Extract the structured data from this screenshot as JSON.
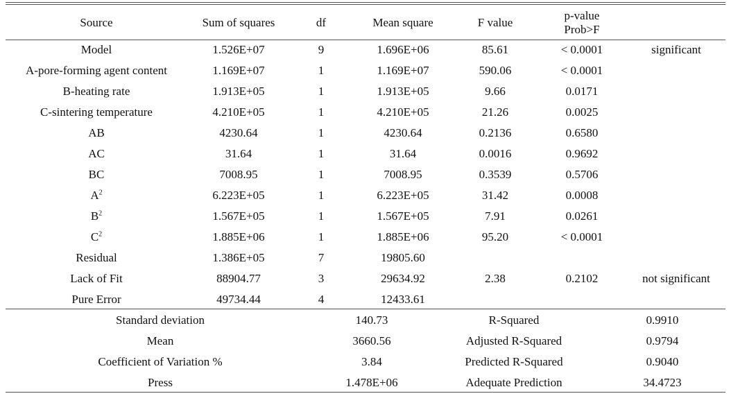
{
  "header": {
    "source": "Source",
    "sum_of_squares": "Sum of squares",
    "df": "df",
    "mean_square": "Mean square",
    "f_value": "F value",
    "p_value_line1": "p-value",
    "p_value_line2": "Prob>F",
    "note": ""
  },
  "rows": [
    {
      "source": "Model",
      "sup": "",
      "ss": "1.526E+07",
      "df": "9",
      "ms": "1.696E+06",
      "f": "85.61",
      "p": "< 0.0001",
      "note": "significant"
    },
    {
      "source": "A-pore-forming agent content",
      "sup": "",
      "ss": "1.169E+07",
      "df": "1",
      "ms": "1.169E+07",
      "f": "590.06",
      "p": "< 0.0001",
      "note": ""
    },
    {
      "source": "B-heating rate",
      "sup": "",
      "ss": "1.913E+05",
      "df": "1",
      "ms": "1.913E+05",
      "f": "9.66",
      "p": "0.0171",
      "note": ""
    },
    {
      "source": "C-sintering temperature",
      "sup": "",
      "ss": "4.210E+05",
      "df": "1",
      "ms": "4.210E+05",
      "f": "21.26",
      "p": "0.0025",
      "note": ""
    },
    {
      "source": "AB",
      "sup": "",
      "ss": "4230.64",
      "df": "1",
      "ms": "4230.64",
      "f": "0.2136",
      "p": "0.6580",
      "note": ""
    },
    {
      "source": "AC",
      "sup": "",
      "ss": "31.64",
      "df": "1",
      "ms": "31.64",
      "f": "0.0016",
      "p": "0.9692",
      "note": ""
    },
    {
      "source": "BC",
      "sup": "",
      "ss": "7008.95",
      "df": "1",
      "ms": "7008.95",
      "f": "0.3539",
      "p": "0.5706",
      "note": ""
    },
    {
      "source": "A",
      "sup": "2",
      "ss": "6.223E+05",
      "df": "1",
      "ms": "6.223E+05",
      "f": "31.42",
      "p": "0.0008",
      "note": ""
    },
    {
      "source": "B",
      "sup": "2",
      "ss": "1.567E+05",
      "df": "1",
      "ms": "1.567E+05",
      "f": "7.91",
      "p": "0.0261",
      "note": ""
    },
    {
      "source": "C",
      "sup": "2",
      "ss": "1.885E+06",
      "df": "1",
      "ms": "1.885E+06",
      "f": "95.20",
      "p": "< 0.0001",
      "note": ""
    },
    {
      "source": "Residual",
      "sup": "",
      "ss": "1.386E+05",
      "df": "7",
      "ms": "19805.60",
      "f": "",
      "p": "",
      "note": ""
    },
    {
      "source": "Lack of Fit",
      "sup": "",
      "ss": "88904.77",
      "df": "3",
      "ms": "29634.92",
      "f": "2.38",
      "p": "0.2102",
      "note": "not significant"
    },
    {
      "source": "Pure Error",
      "sup": "",
      "ss": "49734.44",
      "df": "4",
      "ms": "12433.61",
      "f": "",
      "p": "",
      "note": ""
    }
  ],
  "summary": [
    {
      "label": "Standard deviation",
      "value": "140.73",
      "label2": "R-Squared",
      "value2": "0.9910"
    },
    {
      "label": "Mean",
      "value": "3660.56",
      "label2": "Adjusted R-Squared",
      "value2": "0.9794"
    },
    {
      "label": "Coefficient of Variation %",
      "value": "3.84",
      "label2": "Predicted R-Squared",
      "value2": "0.9040"
    },
    {
      "label": "Press",
      "value": "1.478E+06",
      "label2": "Adequate Prediction",
      "value2": "34.4723"
    }
  ]
}
